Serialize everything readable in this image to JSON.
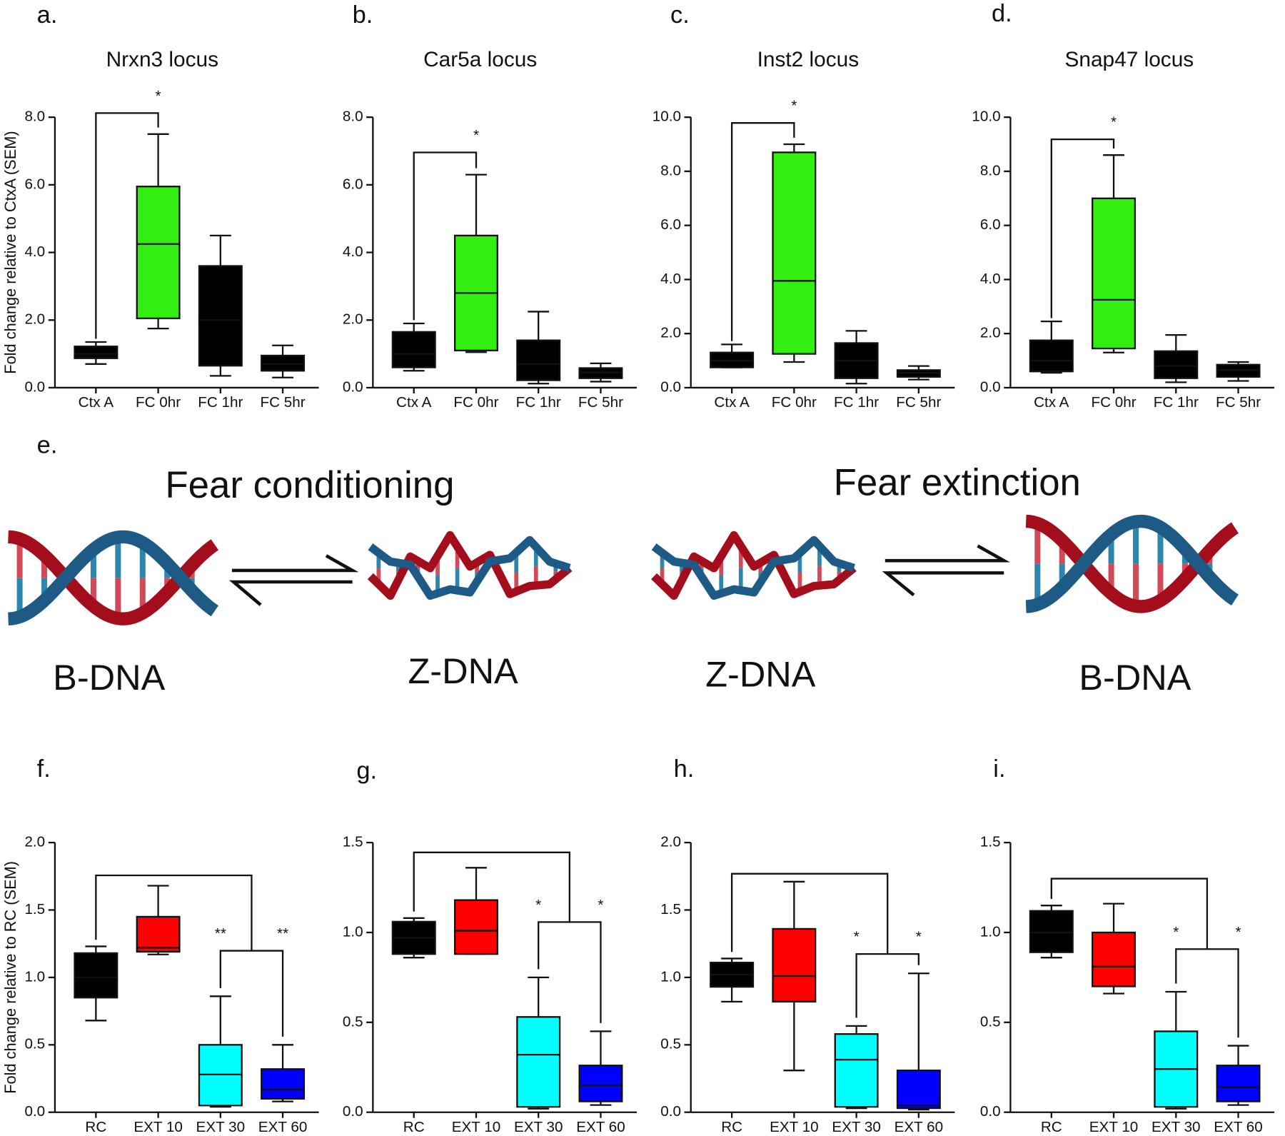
{
  "chart_data": [
    {
      "type": "box",
      "panel": "a.",
      "title": "Nrxn3  locus",
      "ylabel": "Fold change relative to CtxA (SEM)",
      "categories": [
        "Ctx A",
        "FC 0hr",
        "FC 1hr",
        "FC 5hr"
      ],
      "boxes": [
        {
          "color": "#000000",
          "min": 0.7,
          "q1": 0.87,
          "median": 1.0,
          "q3": 1.22,
          "max": 1.35
        },
        {
          "color": "#33ee11",
          "min": 1.75,
          "q1": 2.05,
          "median": 4.25,
          "q3": 5.95,
          "max": 7.5
        },
        {
          "color": "#000000",
          "min": 0.35,
          "q1": 0.65,
          "median": 2.0,
          "q3": 3.6,
          "max": 4.5
        },
        {
          "color": "#000000",
          "min": 0.3,
          "q1": 0.5,
          "median": 0.7,
          "q3": 0.95,
          "max": 1.25
        }
      ],
      "annotations": [
        "*"
      ],
      "ylim": [
        0,
        8
      ],
      "yticks": [
        {
          "value": 0,
          "label": "0.0"
        },
        {
          "value": 2,
          "label": "2.0"
        },
        {
          "value": 4,
          "label": "4.0"
        },
        {
          "value": 6,
          "label": "6.0"
        },
        {
          "value": 8,
          "label": "8.0"
        }
      ]
    },
    {
      "type": "box",
      "panel": "b.",
      "title": "Car5a  locus",
      "categories": [
        "Ctx A",
        "FC 0hr",
        "FC 1hr",
        "FC 5hr"
      ],
      "boxes": [
        {
          "color": "#000000",
          "min": 0.5,
          "q1": 0.6,
          "median": 1.0,
          "q3": 1.65,
          "max": 1.9
        },
        {
          "color": "#33ee11",
          "min": 1.05,
          "q1": 1.1,
          "median": 2.8,
          "q3": 4.5,
          "max": 6.3
        },
        {
          "color": "#000000",
          "min": 0.12,
          "q1": 0.22,
          "median": 0.7,
          "q3": 1.4,
          "max": 2.25
        },
        {
          "color": "#000000",
          "min": 0.18,
          "q1": 0.28,
          "median": 0.45,
          "q3": 0.58,
          "max": 0.72
        }
      ],
      "annotations": [
        "*"
      ],
      "ylim": [
        0,
        8
      ],
      "yticks": [
        {
          "value": 0,
          "label": "0.0"
        },
        {
          "value": 2,
          "label": "2.0"
        },
        {
          "value": 4,
          "label": "4.0"
        },
        {
          "value": 6,
          "label": "6.0"
        },
        {
          "value": 8,
          "label": "8.0"
        }
      ]
    },
    {
      "type": "box",
      "panel": "c.",
      "title": "Inst2 locus",
      "categories": [
        "Ctx A",
        "FC 0hr",
        "FC 1hr",
        "FC 5hr"
      ],
      "boxes": [
        {
          "color": "#000000",
          "min": 0.75,
          "q1": 0.75,
          "median": 1.0,
          "q3": 1.3,
          "max": 1.6
        },
        {
          "color": "#33ee11",
          "min": 0.95,
          "q1": 1.25,
          "median": 3.95,
          "q3": 8.7,
          "max": 9.0
        },
        {
          "color": "#000000",
          "min": 0.15,
          "q1": 0.35,
          "median": 1.0,
          "q3": 1.65,
          "max": 2.1
        },
        {
          "color": "#000000",
          "min": 0.3,
          "q1": 0.4,
          "median": 0.55,
          "q3": 0.65,
          "max": 0.8
        }
      ],
      "annotations": [
        "*"
      ],
      "ylim": [
        0,
        10
      ],
      "yticks": [
        {
          "value": 0,
          "label": "0.0"
        },
        {
          "value": 2,
          "label": "2.0"
        },
        {
          "value": 4,
          "label": "4.0"
        },
        {
          "value": 6,
          "label": "6.0"
        },
        {
          "value": 8,
          "label": "8.0"
        },
        {
          "value": 10,
          "label": "10.0"
        }
      ]
    },
    {
      "type": "box",
      "panel": "d.",
      "title": "Snap47 locus",
      "categories": [
        "Ctx A",
        "FC 0hr",
        "FC 1hr",
        "FC 5hr"
      ],
      "boxes": [
        {
          "color": "#000000",
          "min": 0.55,
          "q1": 0.6,
          "median": 1.0,
          "q3": 1.75,
          "max": 2.45
        },
        {
          "color": "#33ee11",
          "min": 1.3,
          "q1": 1.45,
          "median": 3.25,
          "q3": 7.0,
          "max": 8.6
        },
        {
          "color": "#000000",
          "min": 0.2,
          "q1": 0.35,
          "median": 0.8,
          "q3": 1.35,
          "max": 1.95
        },
        {
          "color": "#000000",
          "min": 0.25,
          "q1": 0.4,
          "median": 0.65,
          "q3": 0.85,
          "max": 0.95
        }
      ],
      "annotations": [
        "*"
      ],
      "ylim": [
        0,
        10
      ],
      "yticks": [
        {
          "value": 0,
          "label": "0.0"
        },
        {
          "value": 2,
          "label": "2.0"
        },
        {
          "value": 4,
          "label": "4.0"
        },
        {
          "value": 6,
          "label": "6.0"
        },
        {
          "value": 8,
          "label": "8.0"
        },
        {
          "value": 10,
          "label": "10.0"
        }
      ]
    },
    {
      "type": "box",
      "panel": "f.",
      "ylabel": "Fold change relative to RC (SEM)",
      "categories": [
        "RC",
        "EXT 10",
        "EXT 30",
        "EXT 60"
      ],
      "boxes": [
        {
          "color": "#000000",
          "min": 0.68,
          "q1": 0.85,
          "median": 1.0,
          "q3": 1.18,
          "max": 1.23
        },
        {
          "color": "#ff0000",
          "min": 1.17,
          "q1": 1.19,
          "median": 1.22,
          "q3": 1.45,
          "max": 1.68
        },
        {
          "color": "#00ffff",
          "min": 0.04,
          "q1": 0.05,
          "median": 0.28,
          "q3": 0.5,
          "max": 0.86
        },
        {
          "color": "#0000ff",
          "min": 0.08,
          "q1": 0.1,
          "median": 0.17,
          "q3": 0.32,
          "max": 0.5
        }
      ],
      "annotations": [
        "**",
        "**"
      ],
      "ylim": [
        0,
        2
      ],
      "yticks": [
        {
          "value": 0,
          "label": "0.0"
        },
        0.5,
        {
          "value": 1,
          "label": "1.0"
        },
        1.5,
        {
          "value": 2,
          "label": "2.0"
        }
      ]
    },
    {
      "type": "box",
      "panel": "g.",
      "categories": [
        "RC",
        "EXT 10",
        "EXT 30",
        "EXT 60"
      ],
      "boxes": [
        {
          "color": "#000000",
          "min": 0.86,
          "q1": 0.88,
          "median": 0.97,
          "q3": 1.06,
          "max": 1.08
        },
        {
          "color": "#ff0000",
          "min": 0.88,
          "q1": 0.88,
          "median": 1.01,
          "q3": 1.18,
          "max": 1.36
        },
        {
          "color": "#00ffff",
          "min": 0.02,
          "q1": 0.03,
          "median": 0.32,
          "q3": 0.53,
          "max": 0.75
        },
        {
          "color": "#0000ff",
          "min": 0.04,
          "q1": 0.06,
          "median": 0.15,
          "q3": 0.26,
          "max": 0.45
        }
      ],
      "annotations": [
        "*",
        "*"
      ],
      "ylim": [
        0,
        1.5
      ],
      "yticks": [
        {
          "value": 0,
          "label": "0.0"
        },
        0.5,
        {
          "value": 1,
          "label": "1.0"
        },
        1.5
      ]
    },
    {
      "type": "box",
      "panel": "h.",
      "categories": [
        "RC",
        "EXT 10",
        "EXT 30",
        "EXT 60"
      ],
      "boxes": [
        {
          "color": "#000000",
          "min": 0.82,
          "q1": 0.93,
          "median": 1.02,
          "q3": 1.11,
          "max": 1.14
        },
        {
          "color": "#ff0000",
          "min": 0.31,
          "q1": 0.82,
          "median": 1.01,
          "q3": 1.36,
          "max": 1.71
        },
        {
          "color": "#00ffff",
          "min": 0.03,
          "q1": 0.04,
          "median": 0.39,
          "q3": 0.58,
          "max": 0.64
        },
        {
          "color": "#0000ff",
          "min": 0.02,
          "q1": 0.03,
          "median": 0.05,
          "q3": 0.31,
          "max": 1.03
        }
      ],
      "annotations": [
        "*",
        "*"
      ],
      "ylim": [
        0,
        2
      ],
      "yticks": [
        {
          "value": 0,
          "label": "0.0"
        },
        0.5,
        {
          "value": 1,
          "label": "1.0"
        },
        1.5,
        {
          "value": 2,
          "label": "2.0"
        }
      ]
    },
    {
      "type": "box",
      "panel": "i.",
      "categories": [
        "RC",
        "EXT 10",
        "EXT 30",
        "EXT 60"
      ],
      "boxes": [
        {
          "color": "#000000",
          "min": 0.86,
          "q1": 0.89,
          "median": 1.0,
          "q3": 1.12,
          "max": 1.15
        },
        {
          "color": "#ff0000",
          "min": 0.66,
          "q1": 0.7,
          "median": 0.81,
          "q3": 1.0,
          "max": 1.16
        },
        {
          "color": "#00ffff",
          "min": 0.02,
          "q1": 0.03,
          "median": 0.24,
          "q3": 0.45,
          "max": 0.67
        },
        {
          "color": "#0000ff",
          "min": 0.04,
          "q1": 0.06,
          "median": 0.14,
          "q3": 0.26,
          "max": 0.37
        }
      ],
      "annotations": [
        "*",
        "*"
      ],
      "ylim": [
        0,
        1.5
      ],
      "yticks": [
        {
          "value": 0,
          "label": "0.0"
        },
        0.5,
        {
          "value": 1,
          "label": "1.0"
        },
        1.5
      ]
    }
  ],
  "diagram": {
    "panel": "e.",
    "left_title": "Fear conditioning",
    "right_title": "Fear extinction",
    "labels": [
      "B-DNA",
      "Z-DNA",
      "Z-DNA",
      "B-DNA"
    ]
  }
}
